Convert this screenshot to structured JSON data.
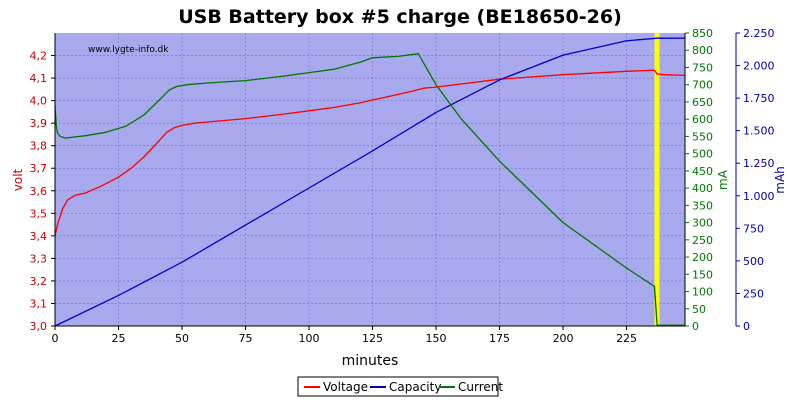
{
  "chart_data": {
    "type": "line",
    "title": "USB Battery box #5 charge (BE18650-26)",
    "watermark": "www.lygte-info.dk",
    "xlabel": "minutes",
    "xlim": [
      0,
      248
    ],
    "xticks": [
      0,
      25,
      50,
      75,
      100,
      125,
      150,
      175,
      200,
      225
    ],
    "axes": {
      "volt": {
        "label": "volt",
        "lim": [
          3.0,
          4.3
        ],
        "ticks": [
          "3,0",
          "3,1",
          "3,2",
          "3,3",
          "3,4",
          "3,5",
          "3,6",
          "3,7",
          "3,8",
          "3,9",
          "4,0",
          "4,1",
          "4,2"
        ],
        "color": "#cc0000",
        "side": "left"
      },
      "mA": {
        "label": "mA",
        "lim": [
          0,
          850
        ],
        "ticks": [
          "0",
          "50",
          "100",
          "150",
          "200",
          "250",
          "300",
          "350",
          "400",
          "450",
          "500",
          "550",
          "600",
          "650",
          "700",
          "750",
          "800",
          "850"
        ],
        "color": "#007700",
        "side": "right"
      },
      "mAh": {
        "label": "mAh",
        "lim": [
          0,
          2250
        ],
        "ticks": [
          "0",
          "250",
          "500",
          "750",
          "1.000",
          "1.250",
          "1.500",
          "1.750",
          "2.000",
          "2.250"
        ],
        "color": "#0000aa",
        "side": "right"
      }
    },
    "marker": {
      "x": 237,
      "color": "#ffff00"
    },
    "colors": {
      "plot_bg": "#a9a9ee",
      "grid": "#6f6fc8"
    },
    "series": [
      {
        "name": "Voltage",
        "axis": "volt",
        "color": "#ff0000",
        "x": [
          0,
          1,
          3,
          5,
          8,
          12,
          18,
          25,
          30,
          35,
          40,
          44,
          47,
          50,
          55,
          60,
          75,
          90,
          100,
          110,
          120,
          130,
          140,
          145,
          150,
          175,
          200,
          225,
          236,
          237,
          240,
          248
        ],
        "y": [
          3.4,
          3.45,
          3.52,
          3.56,
          3.58,
          3.59,
          3.62,
          3.66,
          3.7,
          3.75,
          3.81,
          3.86,
          3.88,
          3.89,
          3.9,
          3.905,
          3.92,
          3.94,
          3.955,
          3.97,
          3.99,
          4.015,
          4.04,
          4.055,
          4.06,
          4.095,
          4.115,
          4.13,
          4.135,
          4.118,
          4.115,
          4.112
        ]
      },
      {
        "name": "Capacity",
        "axis": "mAh",
        "color": "#0000cc",
        "x": [
          0,
          25,
          50,
          75,
          100,
          125,
          150,
          175,
          200,
          225,
          237,
          248
        ],
        "y": [
          0,
          235,
          490,
          775,
          1060,
          1345,
          1640,
          1890,
          2080,
          2190,
          2210,
          2210
        ]
      },
      {
        "name": "Current",
        "axis": "mA",
        "color": "#007700",
        "x": [
          0,
          0.5,
          1,
          2,
          4,
          7,
          12,
          20,
          28,
          35,
          40,
          45,
          48,
          52,
          60,
          75,
          90,
          100,
          110,
          120,
          125,
          135,
          143,
          150,
          160,
          175,
          200,
          225,
          236,
          237,
          248
        ],
        "y": [
          640,
          580,
          560,
          550,
          545,
          548,
          552,
          562,
          580,
          612,
          648,
          685,
          695,
          700,
          705,
          712,
          725,
          735,
          745,
          765,
          778,
          782,
          790,
          700,
          600,
          478,
          300,
          168,
          115,
          2,
          2
        ]
      }
    ],
    "legend": {
      "position": "bottom",
      "entries": [
        "Voltage",
        "Capacity",
        "Current"
      ]
    }
  }
}
